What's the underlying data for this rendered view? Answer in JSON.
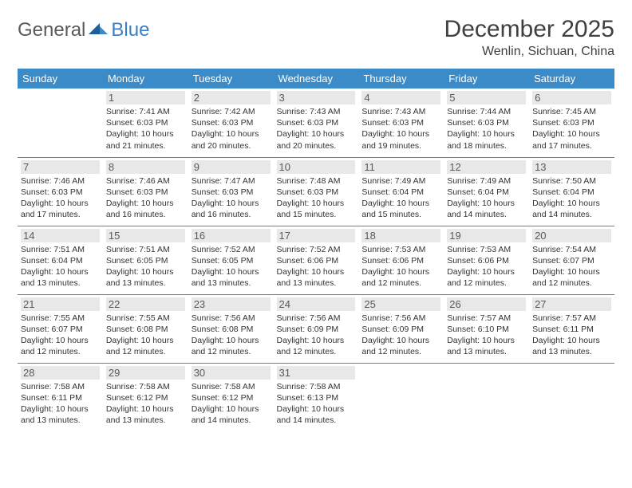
{
  "brand": {
    "part1": "General",
    "part2": "Blue"
  },
  "title": "December 2025",
  "location": "Wenlin, Sichuan, China",
  "colors": {
    "header_bg": "#3b8bc8",
    "header_text": "#ffffff",
    "daynum_bg": "#e8e8e8",
    "brand_blue": "#3b7fc4",
    "brand_gray": "#5a5a5a",
    "row_border": "#3b8bc8"
  },
  "weekdays": [
    "Sunday",
    "Monday",
    "Tuesday",
    "Wednesday",
    "Thursday",
    "Friday",
    "Saturday"
  ],
  "weeks": [
    [
      {
        "n": "",
        "sr": "",
        "ss": "",
        "dl": ""
      },
      {
        "n": "1",
        "sr": "Sunrise: 7:41 AM",
        "ss": "Sunset: 6:03 PM",
        "dl": "Daylight: 10 hours and 21 minutes."
      },
      {
        "n": "2",
        "sr": "Sunrise: 7:42 AM",
        "ss": "Sunset: 6:03 PM",
        "dl": "Daylight: 10 hours and 20 minutes."
      },
      {
        "n": "3",
        "sr": "Sunrise: 7:43 AM",
        "ss": "Sunset: 6:03 PM",
        "dl": "Daylight: 10 hours and 20 minutes."
      },
      {
        "n": "4",
        "sr": "Sunrise: 7:43 AM",
        "ss": "Sunset: 6:03 PM",
        "dl": "Daylight: 10 hours and 19 minutes."
      },
      {
        "n": "5",
        "sr": "Sunrise: 7:44 AM",
        "ss": "Sunset: 6:03 PM",
        "dl": "Daylight: 10 hours and 18 minutes."
      },
      {
        "n": "6",
        "sr": "Sunrise: 7:45 AM",
        "ss": "Sunset: 6:03 PM",
        "dl": "Daylight: 10 hours and 17 minutes."
      }
    ],
    [
      {
        "n": "7",
        "sr": "Sunrise: 7:46 AM",
        "ss": "Sunset: 6:03 PM",
        "dl": "Daylight: 10 hours and 17 minutes."
      },
      {
        "n": "8",
        "sr": "Sunrise: 7:46 AM",
        "ss": "Sunset: 6:03 PM",
        "dl": "Daylight: 10 hours and 16 minutes."
      },
      {
        "n": "9",
        "sr": "Sunrise: 7:47 AM",
        "ss": "Sunset: 6:03 PM",
        "dl": "Daylight: 10 hours and 16 minutes."
      },
      {
        "n": "10",
        "sr": "Sunrise: 7:48 AM",
        "ss": "Sunset: 6:03 PM",
        "dl": "Daylight: 10 hours and 15 minutes."
      },
      {
        "n": "11",
        "sr": "Sunrise: 7:49 AM",
        "ss": "Sunset: 6:04 PM",
        "dl": "Daylight: 10 hours and 15 minutes."
      },
      {
        "n": "12",
        "sr": "Sunrise: 7:49 AM",
        "ss": "Sunset: 6:04 PM",
        "dl": "Daylight: 10 hours and 14 minutes."
      },
      {
        "n": "13",
        "sr": "Sunrise: 7:50 AM",
        "ss": "Sunset: 6:04 PM",
        "dl": "Daylight: 10 hours and 14 minutes."
      }
    ],
    [
      {
        "n": "14",
        "sr": "Sunrise: 7:51 AM",
        "ss": "Sunset: 6:04 PM",
        "dl": "Daylight: 10 hours and 13 minutes."
      },
      {
        "n": "15",
        "sr": "Sunrise: 7:51 AM",
        "ss": "Sunset: 6:05 PM",
        "dl": "Daylight: 10 hours and 13 minutes."
      },
      {
        "n": "16",
        "sr": "Sunrise: 7:52 AM",
        "ss": "Sunset: 6:05 PM",
        "dl": "Daylight: 10 hours and 13 minutes."
      },
      {
        "n": "17",
        "sr": "Sunrise: 7:52 AM",
        "ss": "Sunset: 6:06 PM",
        "dl": "Daylight: 10 hours and 13 minutes."
      },
      {
        "n": "18",
        "sr": "Sunrise: 7:53 AM",
        "ss": "Sunset: 6:06 PM",
        "dl": "Daylight: 10 hours and 12 minutes."
      },
      {
        "n": "19",
        "sr": "Sunrise: 7:53 AM",
        "ss": "Sunset: 6:06 PM",
        "dl": "Daylight: 10 hours and 12 minutes."
      },
      {
        "n": "20",
        "sr": "Sunrise: 7:54 AM",
        "ss": "Sunset: 6:07 PM",
        "dl": "Daylight: 10 hours and 12 minutes."
      }
    ],
    [
      {
        "n": "21",
        "sr": "Sunrise: 7:55 AM",
        "ss": "Sunset: 6:07 PM",
        "dl": "Daylight: 10 hours and 12 minutes."
      },
      {
        "n": "22",
        "sr": "Sunrise: 7:55 AM",
        "ss": "Sunset: 6:08 PM",
        "dl": "Daylight: 10 hours and 12 minutes."
      },
      {
        "n": "23",
        "sr": "Sunrise: 7:56 AM",
        "ss": "Sunset: 6:08 PM",
        "dl": "Daylight: 10 hours and 12 minutes."
      },
      {
        "n": "24",
        "sr": "Sunrise: 7:56 AM",
        "ss": "Sunset: 6:09 PM",
        "dl": "Daylight: 10 hours and 12 minutes."
      },
      {
        "n": "25",
        "sr": "Sunrise: 7:56 AM",
        "ss": "Sunset: 6:09 PM",
        "dl": "Daylight: 10 hours and 12 minutes."
      },
      {
        "n": "26",
        "sr": "Sunrise: 7:57 AM",
        "ss": "Sunset: 6:10 PM",
        "dl": "Daylight: 10 hours and 13 minutes."
      },
      {
        "n": "27",
        "sr": "Sunrise: 7:57 AM",
        "ss": "Sunset: 6:11 PM",
        "dl": "Daylight: 10 hours and 13 minutes."
      }
    ],
    [
      {
        "n": "28",
        "sr": "Sunrise: 7:58 AM",
        "ss": "Sunset: 6:11 PM",
        "dl": "Daylight: 10 hours and 13 minutes."
      },
      {
        "n": "29",
        "sr": "Sunrise: 7:58 AM",
        "ss": "Sunset: 6:12 PM",
        "dl": "Daylight: 10 hours and 13 minutes."
      },
      {
        "n": "30",
        "sr": "Sunrise: 7:58 AM",
        "ss": "Sunset: 6:12 PM",
        "dl": "Daylight: 10 hours and 14 minutes."
      },
      {
        "n": "31",
        "sr": "Sunrise: 7:58 AM",
        "ss": "Sunset: 6:13 PM",
        "dl": "Daylight: 10 hours and 14 minutes."
      },
      {
        "n": "",
        "sr": "",
        "ss": "",
        "dl": ""
      },
      {
        "n": "",
        "sr": "",
        "ss": "",
        "dl": ""
      },
      {
        "n": "",
        "sr": "",
        "ss": "",
        "dl": ""
      }
    ]
  ]
}
